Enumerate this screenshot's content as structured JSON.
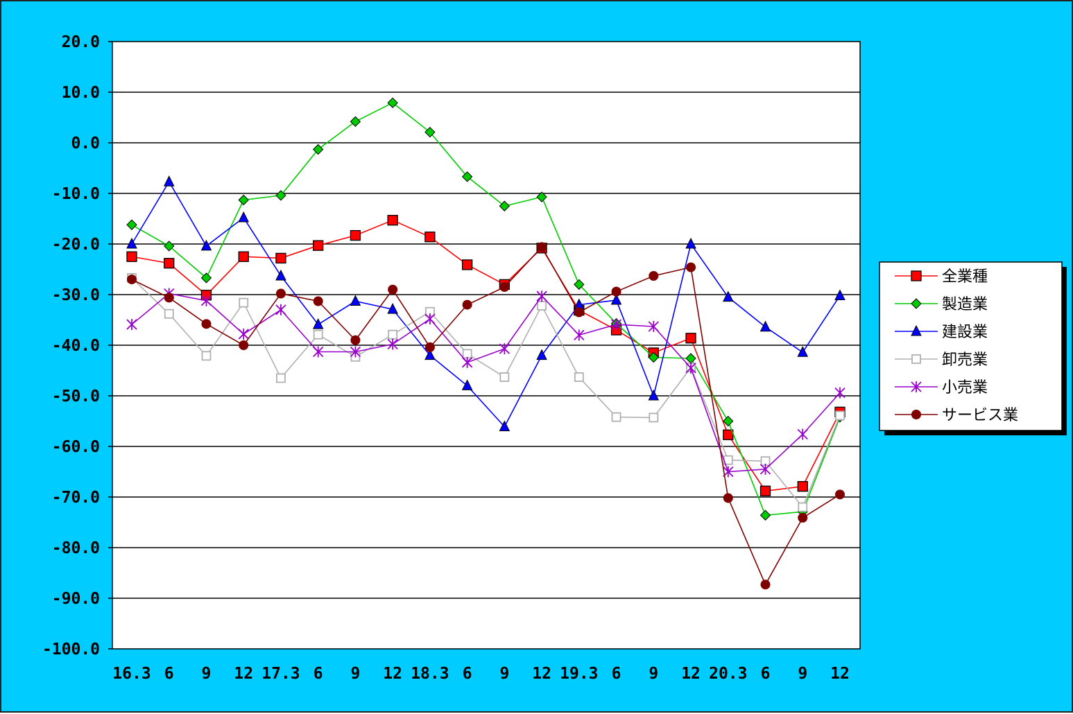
{
  "chart_data": {
    "type": "line",
    "title": "",
    "xlabel": "",
    "ylabel": "",
    "ylim": [
      -100,
      20
    ],
    "ytick_step": 10,
    "ytick_labels": [
      "20.0",
      "10.0",
      "0.0",
      "-10.0",
      "-20.0",
      "-30.0",
      "-40.0",
      "-50.0",
      "-60.0",
      "-70.0",
      "-80.0",
      "-90.0",
      "-100.0"
    ],
    "grid": true,
    "legend_position": "right",
    "categories": [
      "16.3",
      "6",
      "9",
      "12",
      "17.3",
      "6",
      "9",
      "12",
      "18.3",
      "6",
      "9",
      "12",
      "19.3",
      "6",
      "9",
      "12",
      "20.3",
      "6",
      "9",
      "12"
    ],
    "series": [
      {
        "name": "全業種",
        "color": "#ff0000",
        "marker": "square",
        "values": [
          -22.5,
          -23.8,
          -30.1,
          -22.5,
          -22.8,
          -20.3,
          -18.3,
          -15.3,
          -18.6,
          -24.1,
          -28.0,
          -20.8,
          -33.1,
          -37.0,
          -41.5,
          -38.6,
          -57.7,
          -68.8,
          -67.9,
          -53.2
        ]
      },
      {
        "name": "製造業",
        "color": "#00cc00",
        "marker": "diamond",
        "values": [
          -16.2,
          -20.4,
          -26.7,
          -11.3,
          -10.4,
          -1.3,
          4.2,
          7.9,
          2.1,
          -6.7,
          -12.5,
          -10.7,
          -28.0,
          -35.7,
          -42.4,
          -42.6,
          -55.0,
          -73.6,
          -72.9,
          -54.2
        ]
      },
      {
        "name": "建設業",
        "color": "#0000ff",
        "marker": "triangle",
        "values": [
          -20.0,
          -7.7,
          -20.4,
          -14.8,
          -26.3,
          -35.9,
          -31.3,
          -32.9,
          -42.0,
          -48.0,
          -56.1,
          -42.0,
          -32.0,
          -31.1,
          -50.0,
          -20.0,
          -30.5,
          -36.4,
          -41.4,
          -30.2
        ]
      },
      {
        "name": "卸売業",
        "color": "#b0b0b0",
        "marker": "square-open",
        "values": [
          -26.7,
          -33.8,
          -42.1,
          -31.6,
          -46.5,
          -37.9,
          -42.3,
          -37.9,
          -33.4,
          -41.7,
          -46.3,
          -32.2,
          -46.3,
          -54.2,
          -54.3,
          -44.4,
          -62.7,
          -62.9,
          -72.0,
          -53.9
        ]
      },
      {
        "name": "小売業",
        "color": "#9900cc",
        "marker": "star",
        "values": [
          -35.9,
          -29.8,
          -31.2,
          -37.8,
          -33.0,
          -41.3,
          -41.3,
          -39.8,
          -34.8,
          -43.4,
          -40.7,
          -30.3,
          -38.0,
          -35.9,
          -36.3,
          -44.5,
          -65.0,
          -64.5,
          -57.6,
          -49.4
        ]
      },
      {
        "name": "サービス業",
        "color": "#800000",
        "marker": "circle",
        "values": [
          -27.0,
          -30.6,
          -35.8,
          -40.0,
          -29.8,
          -31.3,
          -39.0,
          -29.0,
          -40.4,
          -32.0,
          -28.5,
          -20.6,
          -33.5,
          -29.4,
          -26.3,
          -24.6,
          -70.2,
          -87.3,
          -74.1,
          -69.5
        ]
      }
    ]
  }
}
